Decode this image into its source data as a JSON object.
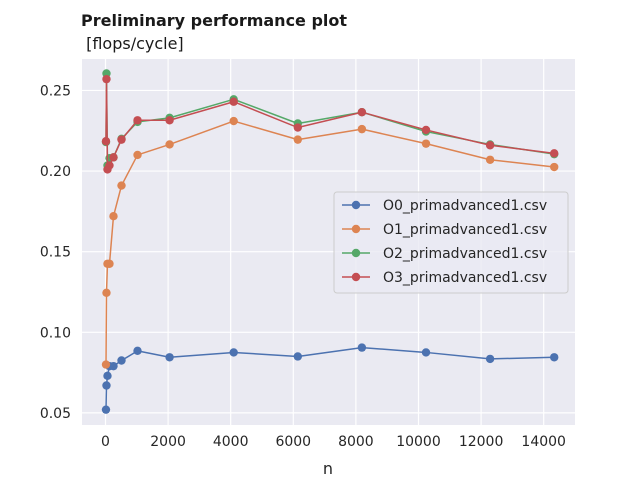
{
  "chart_data": {
    "type": "line",
    "title": "Preliminary performance plot",
    "subtitle": " [flops/cycle]",
    "xlabel": "n",
    "ylabel": "",
    "xlim": [
      -750,
      15000
    ],
    "ylim": [
      0.0425,
      0.2695
    ],
    "xticks": [
      0,
      2000,
      4000,
      6000,
      8000,
      10000,
      12000,
      14000
    ],
    "yticks": [
      0.05,
      0.1,
      0.15,
      0.2,
      0.25
    ],
    "ytick_labels": [
      "0.05",
      "0.10",
      "0.15",
      "0.20",
      "0.25"
    ],
    "grid": true,
    "legend_position": "center-right",
    "x": [
      16,
      32,
      64,
      128,
      256,
      512,
      1024,
      2048,
      4096,
      6144,
      8192,
      10240,
      12288,
      14336
    ],
    "series": [
      {
        "name": "O0_primadvanced1.csv",
        "color": "#4c72b0",
        "values": [
          0.052,
          0.067,
          0.073,
          0.079,
          0.079,
          0.0825,
          0.0885,
          0.0845,
          0.0875,
          0.085,
          0.0905,
          0.0875,
          0.0835,
          0.0845
        ]
      },
      {
        "name": "O1_primadvanced1.csv",
        "color": "#dd8452",
        "values": [
          0.08,
          0.1245,
          0.1425,
          0.1425,
          0.172,
          0.191,
          0.21,
          0.2165,
          0.231,
          0.2195,
          0.226,
          0.217,
          0.207,
          0.2025
        ]
      },
      {
        "name": "O2_primadvanced1.csv",
        "color": "#55a868",
        "values": [
          0.218,
          0.2605,
          0.2035,
          0.208,
          0.2085,
          0.22,
          0.2305,
          0.233,
          0.2445,
          0.2295,
          0.2365,
          0.2245,
          0.2165,
          0.2105
        ]
      },
      {
        "name": "O3_primadvanced1.csv",
        "color": "#c44e52",
        "values": [
          0.2185,
          0.257,
          0.201,
          0.2035,
          0.2085,
          0.2195,
          0.2315,
          0.2315,
          0.243,
          0.227,
          0.2365,
          0.2255,
          0.216,
          0.211
        ]
      }
    ]
  }
}
